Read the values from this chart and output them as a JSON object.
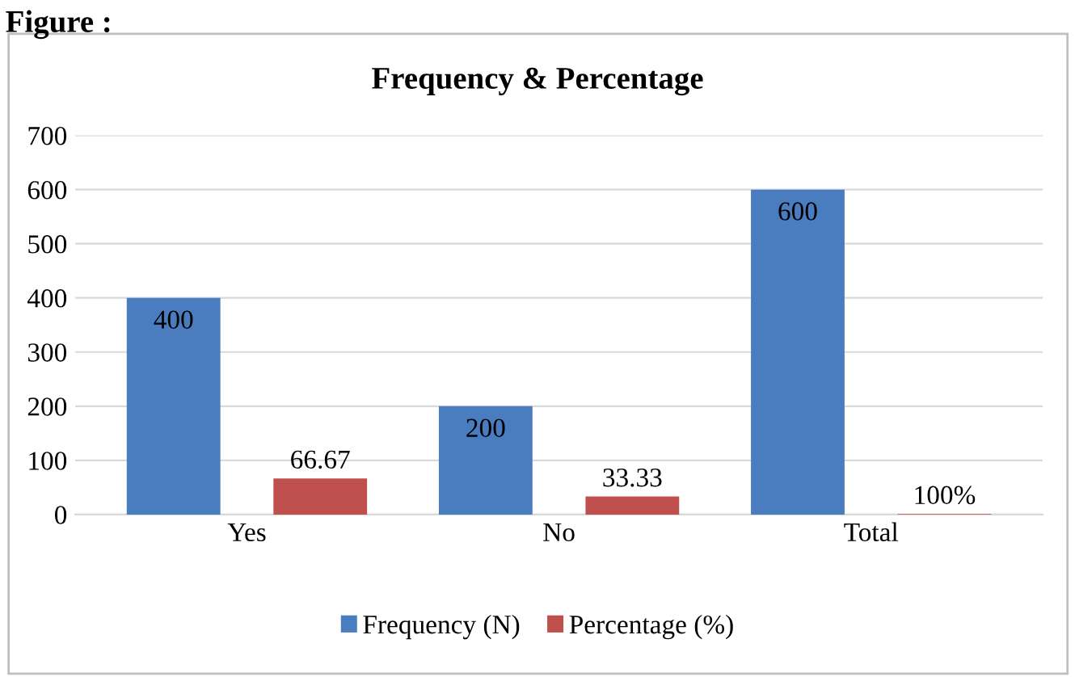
{
  "chart_data": {
    "type": "bar",
    "title": "Frequency & Percentage",
    "annotations": [
      "Figure :"
    ],
    "categories": [
      "Yes",
      "No",
      "Total"
    ],
    "series": [
      {
        "name": "Frequency (N)",
        "color": "#4a7cc0",
        "values": [
          400,
          200,
          600
        ],
        "value_labels": [
          "400",
          "200",
          "600"
        ]
      },
      {
        "name": "Percentage (%)",
        "color": "#c0504d",
        "values": [
          66.67,
          33.33,
          1
        ],
        "value_labels": [
          "66.67",
          "33.33",
          "100%"
        ]
      }
    ],
    "ylim": [
      0,
      700
    ],
    "yticks": [
      0,
      100,
      200,
      300,
      400,
      500,
      600,
      700
    ],
    "grid": "y",
    "legend": "bottom"
  }
}
